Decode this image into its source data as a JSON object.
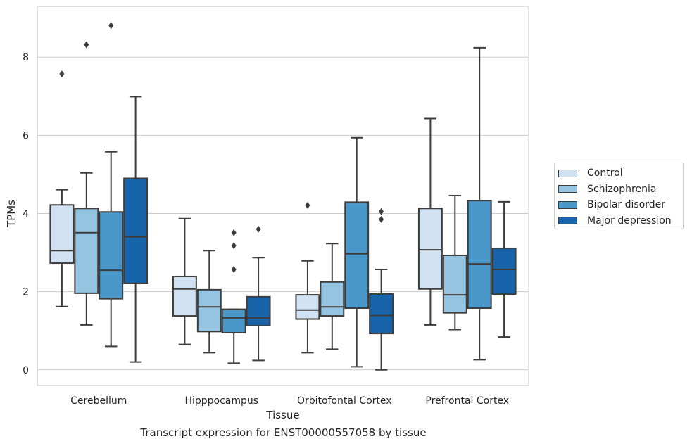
{
  "chart_data": {
    "type": "box",
    "caption": "Transcript expression for ENST00000557058 by tissue",
    "xlabel": "Tissue",
    "ylabel": "TPMs",
    "ylim": [
      -0.4,
      9.3
    ],
    "yticks": [
      0,
      2,
      4,
      6,
      8
    ],
    "grid": "horizontal",
    "legend_position": "right",
    "categories": [
      "Cerebellum",
      "Hipppocampus",
      "Orbitofontal Cortex",
      "Prefrontal Cortex"
    ],
    "series": [
      {
        "name": "Control",
        "color": "#d0e1f2",
        "boxes": [
          {
            "whisker_low": 1.62,
            "q1": 2.73,
            "median": 3.05,
            "q3": 4.22,
            "whisker_high": 4.61,
            "outliers": [
              7.57
            ]
          },
          {
            "whisker_low": 0.65,
            "q1": 1.38,
            "median": 2.07,
            "q3": 2.39,
            "whisker_high": 3.87,
            "outliers": []
          },
          {
            "whisker_low": 0.44,
            "q1": 1.3,
            "median": 1.53,
            "q3": 1.92,
            "whisker_high": 2.79,
            "outliers": [
              4.21
            ]
          },
          {
            "whisker_low": 1.15,
            "q1": 2.07,
            "median": 3.07,
            "q3": 4.13,
            "whisker_high": 6.43,
            "outliers": []
          }
        ]
      },
      {
        "name": "Schizophrenia",
        "color": "#94c4df",
        "boxes": [
          {
            "whisker_low": 1.15,
            "q1": 1.96,
            "median": 3.51,
            "q3": 4.13,
            "whisker_high": 5.04,
            "outliers": [
              8.32
            ]
          },
          {
            "whisker_low": 0.44,
            "q1": 0.98,
            "median": 1.61,
            "q3": 2.05,
            "whisker_high": 3.05,
            "outliers": []
          },
          {
            "whisker_low": 0.53,
            "q1": 1.38,
            "median": 1.61,
            "q3": 2.25,
            "whisker_high": 3.23,
            "outliers": []
          },
          {
            "whisker_low": 1.03,
            "q1": 1.46,
            "median": 1.92,
            "q3": 2.93,
            "whisker_high": 4.46,
            "outliers": []
          }
        ]
      },
      {
        "name": "Bipolar disorder",
        "color": "#4a98c9",
        "boxes": [
          {
            "whisker_low": 0.6,
            "q1": 1.82,
            "median": 2.55,
            "q3": 4.04,
            "whisker_high": 5.58,
            "outliers": [
              8.81
            ]
          },
          {
            "whisker_low": 0.17,
            "q1": 0.95,
            "median": 1.33,
            "q3": 1.55,
            "whisker_high": 1.55,
            "outliers": [
              2.57,
              3.18,
              3.51
            ]
          },
          {
            "whisker_low": 0.08,
            "q1": 1.58,
            "median": 2.97,
            "q3": 4.29,
            "whisker_high": 5.94,
            "outliers": []
          },
          {
            "whisker_low": 0.26,
            "q1": 1.58,
            "median": 2.71,
            "q3": 4.33,
            "whisker_high": 8.24,
            "outliers": []
          }
        ]
      },
      {
        "name": "Major depression",
        "color": "#1764ab",
        "boxes": [
          {
            "whisker_low": 0.2,
            "q1": 2.21,
            "median": 3.4,
            "q3": 4.9,
            "whisker_high": 6.99,
            "outliers": []
          },
          {
            "whisker_low": 0.24,
            "q1": 1.13,
            "median": 1.33,
            "q3": 1.87,
            "whisker_high": 2.87,
            "outliers": [
              3.6
            ]
          },
          {
            "whisker_low": 0.0,
            "q1": 0.93,
            "median": 1.39,
            "q3": 1.94,
            "whisker_high": 2.57,
            "outliers": [
              3.85,
              4.05
            ]
          },
          {
            "whisker_low": 0.84,
            "q1": 1.94,
            "median": 2.57,
            "q3": 3.11,
            "whisker_high": 4.3,
            "outliers": []
          }
        ]
      }
    ]
  }
}
